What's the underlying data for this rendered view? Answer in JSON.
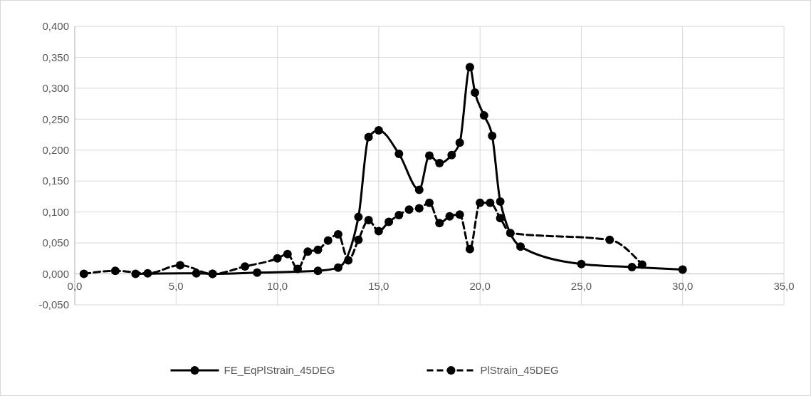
{
  "chart_data": {
    "type": "line",
    "xlim": [
      0,
      35
    ],
    "xticks": [
      {
        "value": 0,
        "label": "0,0"
      },
      {
        "value": 5,
        "label": "5,0"
      },
      {
        "value": 10,
        "label": "10,0"
      },
      {
        "value": 15,
        "label": "15,0"
      },
      {
        "value": 20,
        "label": "20,0"
      },
      {
        "value": 25,
        "label": "25,0"
      },
      {
        "value": 30,
        "label": "30,0"
      },
      {
        "value": 35,
        "label": "35,0"
      }
    ],
    "ylim": [
      -0.05,
      0.4
    ],
    "yticks": [
      {
        "value": -0.05,
        "label": "-0,050"
      },
      {
        "value": 0,
        "label": "0,000"
      },
      {
        "value": 0.05,
        "label": "0,050"
      },
      {
        "value": 0.1,
        "label": "0,100"
      },
      {
        "value": 0.15,
        "label": "0,150"
      },
      {
        "value": 0.2,
        "label": "0,200"
      },
      {
        "value": 0.25,
        "label": "0,250"
      },
      {
        "value": 0.3,
        "label": "0,300"
      },
      {
        "value": 0.35,
        "label": "0,350"
      },
      {
        "value": 0.4,
        "label": "0,400"
      }
    ],
    "grid": true,
    "legend": "bottom",
    "marker": "circle",
    "series": [
      {
        "name": "FE_EqPlStrain_45DEG",
        "color": "#000000",
        "line_style": "solid",
        "x": [
          3,
          6,
          6.8,
          9,
          12,
          13,
          14,
          14.5,
          15,
          16,
          17,
          17.5,
          18,
          18.6,
          19,
          19.5,
          19.75,
          20.2,
          20.6,
          21,
          22,
          25,
          27.5,
          30
        ],
        "values": [
          0,
          0.001,
          0,
          0.002,
          0.005,
          0.01,
          0.092,
          0.221,
          0.232,
          0.194,
          0.136,
          0.191,
          0.179,
          0.192,
          0.212,
          0.334,
          0.293,
          0.256,
          0.223,
          0.117,
          0.044,
          0.016,
          0.011,
          0.007
        ]
      },
      {
        "name": "PlStrain_45DEG",
        "color": "#000000",
        "line_style": "dashed",
        "x": [
          0.45,
          2,
          3.6,
          5.2,
          6.8,
          8.4,
          10,
          10.5,
          11,
          11.5,
          12,
          12.5,
          13,
          13.5,
          14,
          14.5,
          15,
          15.5,
          16,
          16.5,
          17,
          17.5,
          18,
          18.5,
          19,
          19.5,
          20,
          20.5,
          21,
          21.5,
          26.4,
          28
        ],
        "values": [
          0,
          0.005,
          0.001,
          0.014,
          0,
          0.012,
          0.025,
          0.032,
          0.008,
          0.036,
          0.039,
          0.054,
          0.064,
          0.022,
          0.055,
          0.087,
          0.069,
          0.084,
          0.095,
          0.104,
          0.106,
          0.115,
          0.082,
          0.093,
          0.096,
          0.04,
          0.115,
          0.115,
          0.09,
          0.066,
          0.055,
          0.015
        ]
      }
    ]
  }
}
